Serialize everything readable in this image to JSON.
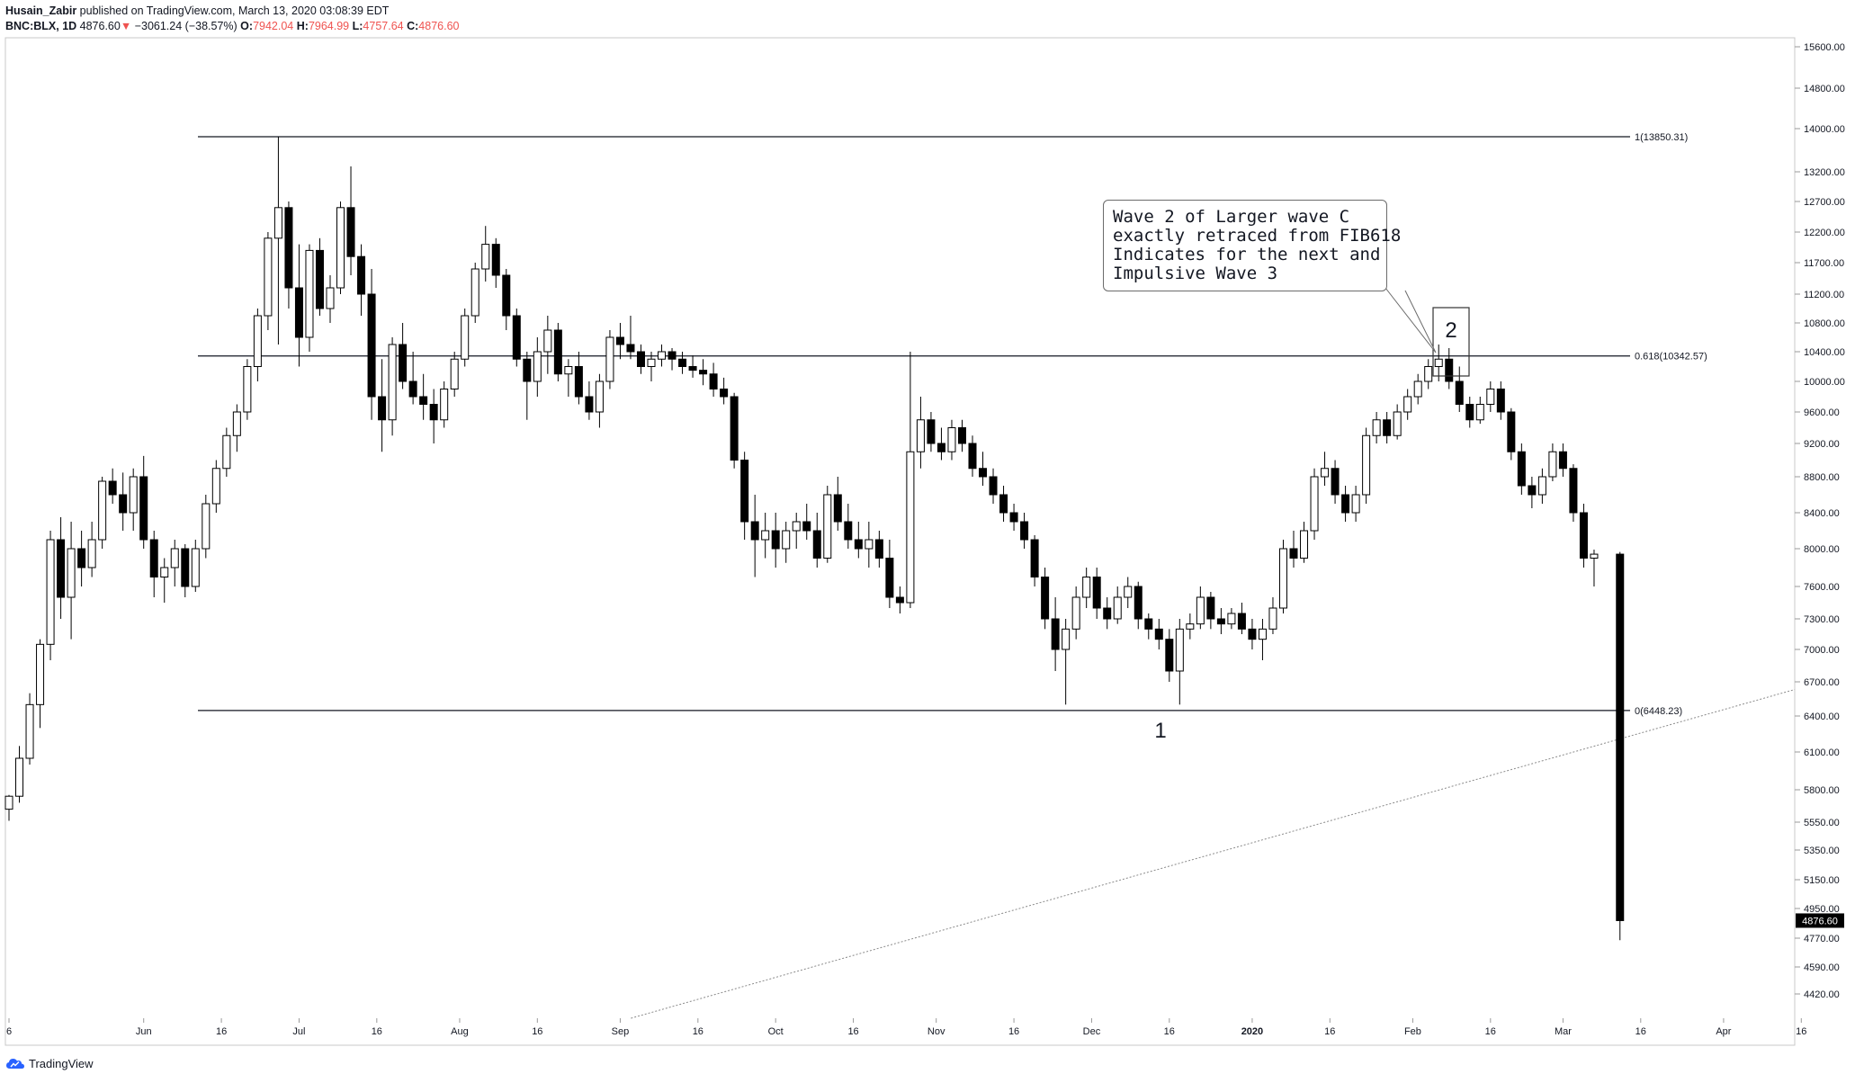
{
  "header": {
    "author": "Husain_Zabir",
    "published": "published on TradingView.com, March 13, 2020 03:08:39 EDT",
    "symbol": "BNC:BLX, 1D",
    "last": "4876.60",
    "change_arrow": "▼",
    "change": "−3061.24 (−38.57%)",
    "o_label": "O:",
    "o_value": "7942.04",
    "h_label": "H:",
    "h_value": "7964.99",
    "l_label": "L:",
    "l_value": "4757.64",
    "c_label": "C:",
    "c_value": "4876.60"
  },
  "footer": {
    "brand": "TradingView"
  },
  "annotations": {
    "callout_lines": [
      "Wave 2 of Larger wave C",
      "exactly retraced from FIB618",
      "Indicates for the next and",
      "Impulsive Wave 3"
    ],
    "wave1_label": "1",
    "wave2_label": "2"
  },
  "colors": {
    "candle_up": "#ffffff",
    "candle_down": "#000000",
    "outline": "#000000",
    "down_text": "#ef5350"
  },
  "chart_data": {
    "type": "candlestick",
    "symbol": "BNC:BLX",
    "interval": "1D",
    "x_tick_labels": [
      "6",
      "Jun",
      "16",
      "Jul",
      "16",
      "Aug",
      "16",
      "Sep",
      "16",
      "Oct",
      "16",
      "Nov",
      "16",
      "Dec",
      "16",
      "2020",
      "16",
      "Feb",
      "16",
      "Mar",
      "16",
      "Apr",
      "16"
    ],
    "y_tick_labels": [
      "15600.00",
      "14800.00",
      "14000.00",
      "13200.00",
      "12700.00",
      "12200.00",
      "11700.00",
      "11200.00",
      "10800.00",
      "10400.00",
      "10000.00",
      "9600.00",
      "9200.00",
      "8800.00",
      "8400.00",
      "8000.00",
      "7600.00",
      "7300.00",
      "7000.00",
      "6700.00",
      "6400.00",
      "6100.00",
      "5800.00",
      "5550.00",
      "5350.00",
      "5150.00",
      "4950.00",
      "4770.00",
      "4590.00",
      "4420.00"
    ],
    "last_price_label": "4876.60",
    "fib_levels": [
      {
        "label": "1(13850.31)",
        "value": 13850.31
      },
      {
        "label": "0.618(10342.57)",
        "value": 10342.57
      },
      {
        "label": "0(6448.23)",
        "value": 6448.23
      }
    ],
    "trendline": {
      "from": [
        "2019-06-01",
        3400
      ],
      "to": [
        "2020-04-20",
        6700
      ]
    },
    "ohlc": [
      [
        "2019-05-06",
        5650,
        5760,
        5560,
        5750
      ],
      [
        "2019-05-08",
        5750,
        6150,
        5700,
        6050
      ],
      [
        "2019-05-10",
        6050,
        6600,
        6000,
        6500
      ],
      [
        "2019-05-12",
        6500,
        7100,
        6300,
        7050
      ],
      [
        "2019-05-14",
        7050,
        8200,
        6900,
        8100
      ],
      [
        "2019-05-16",
        8100,
        8350,
        7300,
        7500
      ],
      [
        "2019-05-18",
        7500,
        8300,
        7100,
        8000
      ],
      [
        "2019-05-20",
        8000,
        8200,
        7600,
        7800
      ],
      [
        "2019-05-22",
        7800,
        8300,
        7700,
        8100
      ],
      [
        "2019-05-24",
        8100,
        8800,
        8000,
        8750
      ],
      [
        "2019-05-26",
        8750,
        8900,
        8500,
        8600
      ],
      [
        "2019-05-28",
        8600,
        8850,
        8200,
        8400
      ],
      [
        "2019-05-30",
        8400,
        8900,
        8200,
        8800
      ],
      [
        "2019-06-01",
        8800,
        9050,
        8000,
        8100
      ],
      [
        "2019-06-03",
        8100,
        8200,
        7500,
        7700
      ],
      [
        "2019-06-05",
        7700,
        7900,
        7450,
        7800
      ],
      [
        "2019-06-07",
        7800,
        8100,
        7600,
        8000
      ],
      [
        "2019-06-09",
        8000,
        8050,
        7500,
        7600
      ],
      [
        "2019-06-11",
        7600,
        8100,
        7550,
        8000
      ],
      [
        "2019-06-13",
        8000,
        8600,
        7900,
        8500
      ],
      [
        "2019-06-15",
        8500,
        9000,
        8400,
        8900
      ],
      [
        "2019-06-17",
        8900,
        9400,
        8800,
        9300
      ],
      [
        "2019-06-19",
        9300,
        9700,
        9100,
        9600
      ],
      [
        "2019-06-21",
        9600,
        10300,
        9500,
        10200
      ],
      [
        "2019-06-23",
        10200,
        11000,
        10000,
        10900
      ],
      [
        "2019-06-25",
        10900,
        12200,
        10700,
        12100
      ],
      [
        "2019-06-27",
        12100,
        13850,
        10500,
        12600
      ],
      [
        "2019-06-29",
        12600,
        12700,
        11000,
        11300
      ],
      [
        "2019-07-01",
        11300,
        12000,
        10200,
        10600
      ],
      [
        "2019-07-03",
        10600,
        12000,
        10400,
        11900
      ],
      [
        "2019-07-05",
        11900,
        12100,
        10900,
        11000
      ],
      [
        "2019-07-07",
        11000,
        11500,
        10800,
        11300
      ],
      [
        "2019-07-09",
        11300,
        12700,
        11200,
        12600
      ],
      [
        "2019-07-11",
        12600,
        13300,
        11500,
        11800
      ],
      [
        "2019-07-13",
        11800,
        12000,
        10900,
        11200
      ],
      [
        "2019-07-15",
        11200,
        11600,
        9500,
        9800
      ],
      [
        "2019-07-17",
        9800,
        10300,
        9100,
        9500
      ],
      [
        "2019-07-19",
        9500,
        10600,
        9300,
        10500
      ],
      [
        "2019-07-21",
        10500,
        10800,
        9900,
        10000
      ],
      [
        "2019-07-23",
        10000,
        10400,
        9700,
        9800
      ],
      [
        "2019-07-25",
        9800,
        10100,
        9500,
        9700
      ],
      [
        "2019-07-27",
        9700,
        9900,
        9200,
        9500
      ],
      [
        "2019-07-29",
        9500,
        10000,
        9400,
        9900
      ],
      [
        "2019-07-31",
        9900,
        10400,
        9800,
        10300
      ],
      [
        "2019-08-02",
        10300,
        11000,
        10200,
        10900
      ],
      [
        "2019-08-04",
        10900,
        11700,
        10800,
        11600
      ],
      [
        "2019-08-06",
        11600,
        12300,
        11400,
        12000
      ],
      [
        "2019-08-08",
        12000,
        12100,
        11300,
        11500
      ],
      [
        "2019-08-10",
        11500,
        11600,
        10700,
        10900
      ],
      [
        "2019-08-12",
        10900,
        11000,
        10200,
        10300
      ],
      [
        "2019-08-14",
        10300,
        10400,
        9500,
        10000
      ],
      [
        "2019-08-16",
        10000,
        10600,
        9800,
        10400
      ],
      [
        "2019-08-18",
        10400,
        10900,
        10100,
        10700
      ],
      [
        "2019-08-20",
        10700,
        10800,
        10000,
        10100
      ],
      [
        "2019-08-22",
        10100,
        10300,
        9800,
        10200
      ],
      [
        "2019-08-24",
        10200,
        10400,
        9700,
        9800
      ],
      [
        "2019-08-26",
        9800,
        10000,
        9500,
        9600
      ],
      [
        "2019-08-28",
        9600,
        10100,
        9400,
        10000
      ],
      [
        "2019-08-30",
        10000,
        10700,
        9900,
        10600
      ],
      [
        "2019-09-01",
        10600,
        10800,
        10300,
        10500
      ],
      [
        "2019-09-03",
        10500,
        10900,
        10300,
        10400
      ],
      [
        "2019-09-05",
        10400,
        10500,
        10100,
        10200
      ],
      [
        "2019-09-07",
        10200,
        10400,
        10000,
        10300
      ],
      [
        "2019-09-09",
        10300,
        10500,
        10200,
        10400
      ],
      [
        "2019-09-11",
        10400,
        10450,
        10150,
        10300
      ],
      [
        "2019-09-13",
        10300,
        10400,
        10100,
        10200
      ],
      [
        "2019-09-15",
        10200,
        10350,
        10050,
        10150
      ],
      [
        "2019-09-17",
        10150,
        10300,
        9950,
        10100
      ],
      [
        "2019-09-19",
        10100,
        10250,
        9800,
        9900
      ],
      [
        "2019-09-21",
        9900,
        10050,
        9700,
        9800
      ],
      [
        "2019-09-23",
        9800,
        9850,
        8900,
        9000
      ],
      [
        "2019-09-25",
        9000,
        9100,
        8100,
        8300
      ],
      [
        "2019-09-27",
        8300,
        8600,
        7700,
        8100
      ],
      [
        "2019-09-29",
        8100,
        8400,
        7900,
        8200
      ],
      [
        "2019-10-01",
        8200,
        8400,
        7800,
        8000
      ],
      [
        "2019-10-03",
        8000,
        8300,
        7850,
        8200
      ],
      [
        "2019-10-05",
        8200,
        8400,
        8000,
        8300
      ],
      [
        "2019-10-07",
        8300,
        8500,
        8100,
        8200
      ],
      [
        "2019-10-09",
        8200,
        8400,
        7800,
        7900
      ],
      [
        "2019-10-11",
        7900,
        8700,
        7850,
        8600
      ],
      [
        "2019-10-13",
        8600,
        8800,
        8200,
        8300
      ],
      [
        "2019-10-15",
        8300,
        8500,
        8000,
        8100
      ],
      [
        "2019-10-17",
        8100,
        8300,
        7900,
        8000
      ],
      [
        "2019-10-19",
        8000,
        8300,
        7800,
        8100
      ],
      [
        "2019-10-21",
        8100,
        8200,
        7800,
        7900
      ],
      [
        "2019-10-23",
        7900,
        8100,
        7400,
        7500
      ],
      [
        "2019-10-25",
        7500,
        7600,
        7350,
        7450
      ],
      [
        "2019-10-27",
        7450,
        10400,
        7400,
        9100
      ],
      [
        "2019-10-29",
        9100,
        9800,
        8900,
        9500
      ],
      [
        "2019-10-31",
        9500,
        9600,
        9100,
        9200
      ],
      [
        "2019-11-02",
        9200,
        9400,
        9000,
        9100
      ],
      [
        "2019-11-04",
        9100,
        9500,
        9000,
        9400
      ],
      [
        "2019-11-06",
        9400,
        9500,
        9100,
        9200
      ],
      [
        "2019-11-08",
        9200,
        9300,
        8800,
        8900
      ],
      [
        "2019-11-10",
        8900,
        9100,
        8700,
        8800
      ],
      [
        "2019-11-12",
        8800,
        8900,
        8500,
        8600
      ],
      [
        "2019-11-14",
        8600,
        8700,
        8300,
        8400
      ],
      [
        "2019-11-16",
        8400,
        8500,
        8200,
        8300
      ],
      [
        "2019-11-18",
        8300,
        8400,
        8000,
        8100
      ],
      [
        "2019-11-20",
        8100,
        8150,
        7600,
        7700
      ],
      [
        "2019-11-22",
        7700,
        7800,
        7200,
        7300
      ],
      [
        "2019-11-24",
        7300,
        7500,
        6800,
        7000
      ],
      [
        "2019-11-26",
        7000,
        7300,
        6500,
        7200
      ],
      [
        "2019-11-28",
        7200,
        7600,
        7100,
        7500
      ],
      [
        "2019-11-30",
        7500,
        7800,
        7400,
        7700
      ],
      [
        "2019-12-02",
        7700,
        7800,
        7300,
        7400
      ],
      [
        "2019-12-04",
        7400,
        7500,
        7200,
        7300
      ],
      [
        "2019-12-06",
        7300,
        7600,
        7250,
        7500
      ],
      [
        "2019-12-08",
        7500,
        7700,
        7400,
        7600
      ],
      [
        "2019-12-10",
        7600,
        7650,
        7200,
        7300
      ],
      [
        "2019-12-12",
        7300,
        7350,
        7100,
        7200
      ],
      [
        "2019-12-14",
        7200,
        7300,
        7000,
        7100
      ],
      [
        "2019-12-16",
        7100,
        7200,
        6700,
        6800
      ],
      [
        "2019-12-18",
        6800,
        7300,
        6500,
        7200
      ],
      [
        "2019-12-20",
        7200,
        7350,
        7100,
        7250
      ],
      [
        "2019-12-22",
        7250,
        7600,
        7200,
        7500
      ],
      [
        "2019-12-24",
        7500,
        7550,
        7200,
        7300
      ],
      [
        "2019-12-26",
        7300,
        7400,
        7150,
        7250
      ],
      [
        "2019-12-28",
        7250,
        7400,
        7200,
        7350
      ],
      [
        "2019-12-30",
        7350,
        7450,
        7150,
        7200
      ],
      [
        "2020-01-01",
        7200,
        7300,
        7000,
        7100
      ],
      [
        "2020-01-03",
        7100,
        7300,
        6900,
        7200
      ],
      [
        "2020-01-05",
        7200,
        7500,
        7150,
        7400
      ],
      [
        "2020-01-07",
        7400,
        8100,
        7350,
        8000
      ],
      [
        "2020-01-09",
        8000,
        8200,
        7800,
        7900
      ],
      [
        "2020-01-11",
        7900,
        8300,
        7850,
        8200
      ],
      [
        "2020-01-13",
        8200,
        8900,
        8100,
        8800
      ],
      [
        "2020-01-15",
        8800,
        9100,
        8700,
        8900
      ],
      [
        "2020-01-17",
        8900,
        9000,
        8500,
        8600
      ],
      [
        "2020-01-19",
        8600,
        8700,
        8300,
        8400
      ],
      [
        "2020-01-21",
        8400,
        8700,
        8300,
        8600
      ],
      [
        "2020-01-23",
        8600,
        9400,
        8500,
        9300
      ],
      [
        "2020-01-25",
        9300,
        9600,
        9200,
        9500
      ],
      [
        "2020-01-27",
        9500,
        9600,
        9200,
        9300
      ],
      [
        "2020-01-29",
        9300,
        9700,
        9250,
        9600
      ],
      [
        "2020-01-31",
        9600,
        9900,
        9500,
        9800
      ],
      [
        "2020-02-02",
        9800,
        10100,
        9700,
        10000
      ],
      [
        "2020-02-04",
        10000,
        10300,
        9900,
        10200
      ],
      [
        "2020-02-06",
        10200,
        10500,
        10000,
        10300
      ],
      [
        "2020-02-08",
        10300,
        10450,
        9900,
        10000
      ],
      [
        "2020-02-10",
        10000,
        10200,
        9600,
        9700
      ],
      [
        "2020-02-12",
        9700,
        9800,
        9400,
        9500
      ],
      [
        "2020-02-14",
        9500,
        9800,
        9450,
        9700
      ],
      [
        "2020-02-16",
        9700,
        10000,
        9600,
        9900
      ],
      [
        "2020-02-18",
        9900,
        10000,
        9500,
        9600
      ],
      [
        "2020-02-20",
        9600,
        9650,
        9000,
        9100
      ],
      [
        "2020-02-22",
        9100,
        9200,
        8600,
        8700
      ],
      [
        "2020-02-24",
        8700,
        8800,
        8450,
        8600
      ],
      [
        "2020-02-26",
        8600,
        8900,
        8500,
        8800
      ],
      [
        "2020-02-28",
        8800,
        9200,
        8750,
        9100
      ],
      [
        "2020-03-01",
        9100,
        9200,
        8800,
        8900
      ],
      [
        "2020-03-03",
        8900,
        8950,
        8300,
        8400
      ],
      [
        "2020-03-05",
        8400,
        8500,
        7800,
        7900
      ],
      [
        "2020-03-07",
        7900,
        7990,
        7600,
        7942.04
      ],
      [
        "2020-03-12",
        7942.04,
        7964.99,
        4757.64,
        4876.6
      ]
    ]
  }
}
